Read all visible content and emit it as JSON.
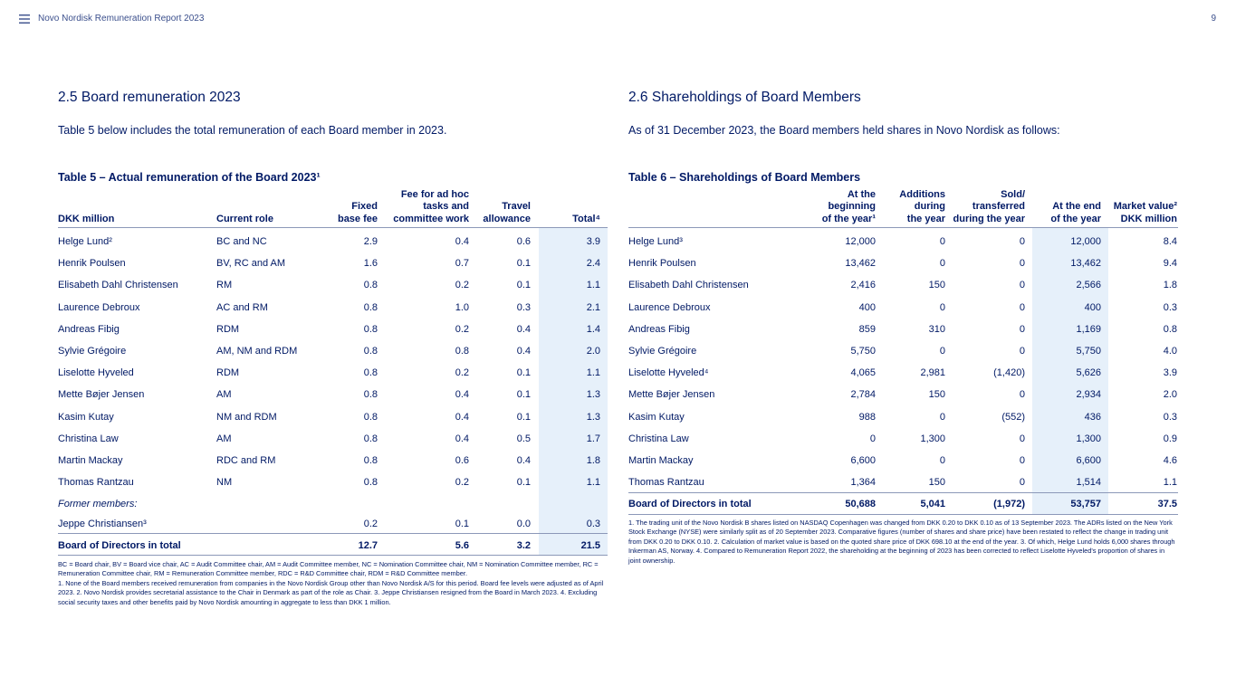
{
  "header": {
    "title": "Novo Nordisk Remuneration Report 2023",
    "page_number": "9"
  },
  "left": {
    "heading": "2.5 Board remuneration 2023",
    "intro": "Table 5 below includes the total remuneration of each Board member in 2023.",
    "table": {
      "title": "Table 5 – Actual remuneration of the Board 2023¹",
      "columns": [
        "DKK million",
        "Current role",
        "Fixed\nbase fee",
        "Fee for ad hoc\ntasks and\ncommittee work",
        "Travel\nallowance",
        "Total⁴"
      ],
      "rows": [
        [
          "Helge Lund²",
          "BC and NC",
          "2.9",
          "0.4",
          "0.6",
          "3.9"
        ],
        [
          "Henrik Poulsen",
          "BV, RC and AM",
          "1.6",
          "0.7",
          "0.1",
          "2.4"
        ],
        [
          "Elisabeth Dahl Christensen",
          "RM",
          "0.8",
          "0.2",
          "0.1",
          "1.1"
        ],
        [
          "Laurence Debroux",
          "AC and RM",
          "0.8",
          "1.0",
          "0.3",
          "2.1"
        ],
        [
          "Andreas Fibig",
          "RDM",
          "0.8",
          "0.2",
          "0.4",
          "1.4"
        ],
        [
          "Sylvie Grégoire",
          "AM, NM and RDM",
          "0.8",
          "0.8",
          "0.4",
          "2.0"
        ],
        [
          "Liselotte Hyveled",
          "RDM",
          "0.8",
          "0.2",
          "0.1",
          "1.1"
        ],
        [
          "Mette Bøjer Jensen",
          "AM",
          "0.8",
          "0.4",
          "0.1",
          "1.3"
        ],
        [
          "Kasim Kutay",
          "NM and RDM",
          "0.8",
          "0.4",
          "0.1",
          "1.3"
        ],
        [
          "Christina Law",
          "AM",
          "0.8",
          "0.4",
          "0.5",
          "1.7"
        ],
        [
          "Martin Mackay",
          "RDC and RM",
          "0.8",
          "0.6",
          "0.4",
          "1.8"
        ],
        [
          "Thomas Rantzau",
          "NM",
          "0.8",
          "0.2",
          "0.1",
          "1.1"
        ]
      ],
      "former_label": "Former members:",
      "former_rows": [
        [
          "Jeppe Christiansen³",
          "",
          "0.2",
          "0.1",
          "0.0",
          "0.3"
        ]
      ],
      "total": [
        "Board of Directors in total",
        "",
        "12.7",
        "5.6",
        "3.2",
        "21.5"
      ]
    },
    "notes": [
      "BC = Board chair, BV = Board vice chair, AC = Audit Committee chair, AM = Audit Committee member, NC = Nomination Committee chair, NM = Nomination Committee member, RC = Remuneration Committee chair, RM = Remuneration Committee member, RDC = R&D Committee chair, RDM = R&D Committee member.",
      "1. None of the Board members received remuneration from companies in the Novo Nordisk Group other than Novo Nordisk A/S for this period. Board fee levels were adjusted as of April 2023. 2. Novo Nordisk provides secretarial assistance to the Chair in Denmark as part of the role as Chair. 3. Jeppe Christiansen resigned from the Board in March 2023. 4. Excluding social security taxes and other benefits paid by Novo Nordisk amounting in aggregate to less than DKK 1 million."
    ]
  },
  "right": {
    "heading": "2.6 Shareholdings of Board Members",
    "intro": "As of 31 December 2023, the Board members held shares in Novo Nordisk as follows:",
    "table": {
      "title": "Table 6 – Shareholdings of Board Members",
      "columns": [
        "At the\nbeginning\nof the year¹",
        "Additions\nduring\nthe year",
        "Sold/\ntransferred\nduring the year",
        "At the end\nof the year",
        "Market value²\nDKK million"
      ],
      "rows": [
        [
          "Helge Lund³",
          "12,000",
          "0",
          "0",
          "12,000",
          "8.4"
        ],
        [
          "Henrik Poulsen",
          "13,462",
          "0",
          "0",
          "13,462",
          "9.4"
        ],
        [
          "Elisabeth Dahl Christensen",
          "2,416",
          "150",
          "0",
          "2,566",
          "1.8"
        ],
        [
          "Laurence Debroux",
          "400",
          "0",
          "0",
          "400",
          "0.3"
        ],
        [
          "Andreas Fibig",
          "859",
          "310",
          "0",
          "1,169",
          "0.8"
        ],
        [
          "Sylvie Grégoire",
          "5,750",
          "0",
          "0",
          "5,750",
          "4.0"
        ],
        [
          "Liselotte Hyveled⁴",
          "4,065",
          "2,981",
          "(1,420)",
          "5,626",
          "3.9"
        ],
        [
          "Mette Bøjer Jensen",
          "2,784",
          "150",
          "0",
          "2,934",
          "2.0"
        ],
        [
          "Kasim Kutay",
          "988",
          "0",
          "(552)",
          "436",
          "0.3"
        ],
        [
          "Christina Law",
          "0",
          "1,300",
          "0",
          "1,300",
          "0.9"
        ],
        [
          "Martin Mackay",
          "6,600",
          "0",
          "0",
          "6,600",
          "4.6"
        ],
        [
          "Thomas Rantzau",
          "1,364",
          "150",
          "0",
          "1,514",
          "1.1"
        ]
      ],
      "total": [
        "Board of Directors in total",
        "50,688",
        "5,041",
        "(1,972)",
        "53,757",
        "37.5"
      ]
    },
    "notes": [
      "1. The trading unit of the Novo Nordisk B shares listed on NASDAQ Copenhagen was changed from DKK 0.20 to DKK 0.10 as of 13 September 2023. The ADRs listed on the New York Stock Exchange (NYSE) were similarly split as of 20 September 2023. Comparative figures (number of shares and share price) have been restated to reflect the change in trading unit from DKK 0.20 to DKK 0.10.  2. Calculation of market value is based on the quoted share price of DKK 698.10 at the end of the year. 3. Of which, Helge Lund holds 6,000 shares through Inkerman AS, Norway. 4. Compared to Remuneration Report 2022, the shareholding at the beginning of 2023 has been corrected to reflect Liselotte Hyveled's proportion of shares in joint ownership."
    ]
  }
}
